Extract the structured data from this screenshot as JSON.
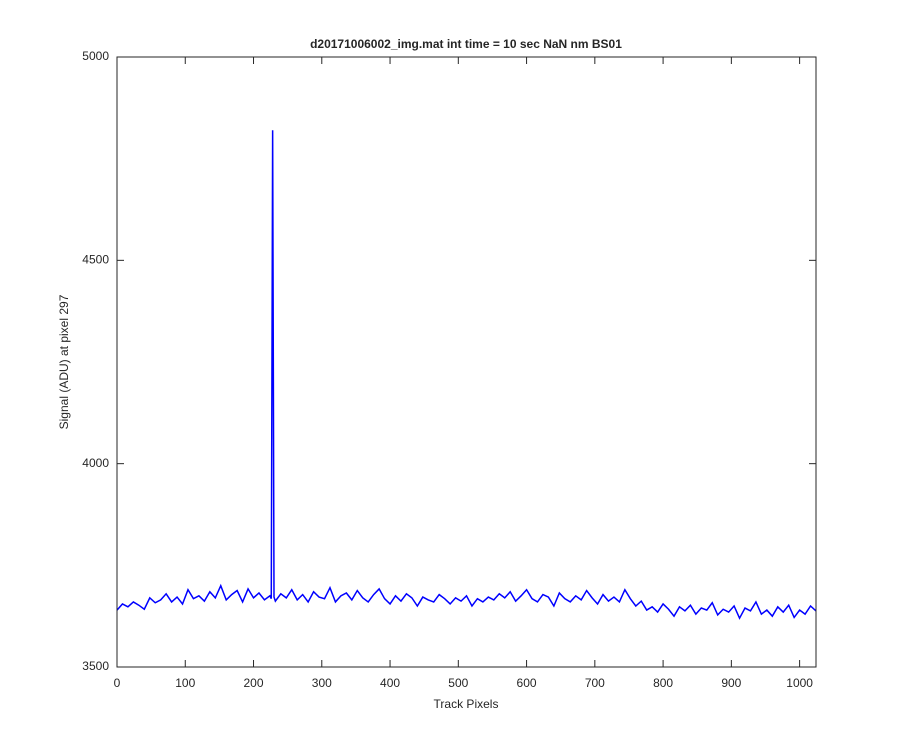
{
  "chart_data": {
    "type": "line",
    "title": "d20171006002_img.mat int time = 10 sec  NaN nm BS01",
    "xlabel": "Track Pixels",
    "ylabel": "Signal (ADU) at pixel 297",
    "color": "#0000ff",
    "x": [
      0,
      8,
      16,
      24,
      32,
      40,
      48,
      56,
      64,
      72,
      80,
      88,
      96,
      104,
      112,
      120,
      128,
      136,
      144,
      152,
      160,
      168,
      176,
      184,
      192,
      200,
      208,
      216,
      224,
      226,
      228,
      230,
      232,
      240,
      248,
      256,
      264,
      272,
      280,
      288,
      296,
      304,
      312,
      320,
      328,
      336,
      344,
      352,
      360,
      368,
      376,
      384,
      392,
      400,
      408,
      416,
      424,
      432,
      440,
      448,
      456,
      464,
      472,
      480,
      488,
      496,
      504,
      512,
      520,
      528,
      536,
      544,
      552,
      560,
      568,
      576,
      584,
      592,
      600,
      608,
      616,
      624,
      632,
      640,
      648,
      656,
      664,
      672,
      680,
      688,
      696,
      704,
      712,
      720,
      728,
      736,
      744,
      752,
      760,
      768,
      776,
      784,
      792,
      800,
      808,
      816,
      824,
      832,
      840,
      848,
      856,
      864,
      872,
      880,
      888,
      896,
      904,
      912,
      920,
      928,
      936,
      944,
      952,
      960,
      968,
      976,
      984,
      992,
      1000,
      1008,
      1016,
      1024
    ],
    "values": [
      3640,
      3655,
      3648,
      3660,
      3652,
      3642,
      3670,
      3658,
      3665,
      3680,
      3660,
      3672,
      3655,
      3690,
      3668,
      3675,
      3662,
      3685,
      3670,
      3700,
      3665,
      3678,
      3688,
      3660,
      3692,
      3670,
      3682,
      3665,
      3675,
      3668,
      4820,
      3672,
      3662,
      3680,
      3670,
      3690,
      3665,
      3678,
      3660,
      3685,
      3672,
      3668,
      3695,
      3660,
      3675,
      3682,
      3665,
      3688,
      3670,
      3660,
      3678,
      3692,
      3668,
      3655,
      3675,
      3662,
      3680,
      3670,
      3650,
      3672,
      3665,
      3660,
      3678,
      3668,
      3655,
      3670,
      3662,
      3675,
      3650,
      3668,
      3660,
      3672,
      3665,
      3680,
      3670,
      3685,
      3662,
      3675,
      3690,
      3668,
      3660,
      3678,
      3672,
      3650,
      3682,
      3668,
      3660,
      3675,
      3665,
      3688,
      3670,
      3655,
      3678,
      3662,
      3672,
      3660,
      3690,
      3668,
      3650,
      3662,
      3640,
      3648,
      3635,
      3655,
      3642,
      3625,
      3648,
      3638,
      3652,
      3630,
      3645,
      3640,
      3658,
      3628,
      3642,
      3635,
      3650,
      3620,
      3645,
      3638,
      3660,
      3630,
      3640,
      3625,
      3648,
      3635,
      3652,
      3622,
      3640,
      3630,
      3650,
      3638
    ],
    "xlim": [
      0,
      1024
    ],
    "xticks": [
      0,
      100,
      200,
      300,
      400,
      500,
      600,
      700,
      800,
      900,
      1000
    ],
    "ylim": [
      3500,
      5000
    ],
    "yticks": [
      3500,
      4000,
      4500,
      5000
    ]
  }
}
